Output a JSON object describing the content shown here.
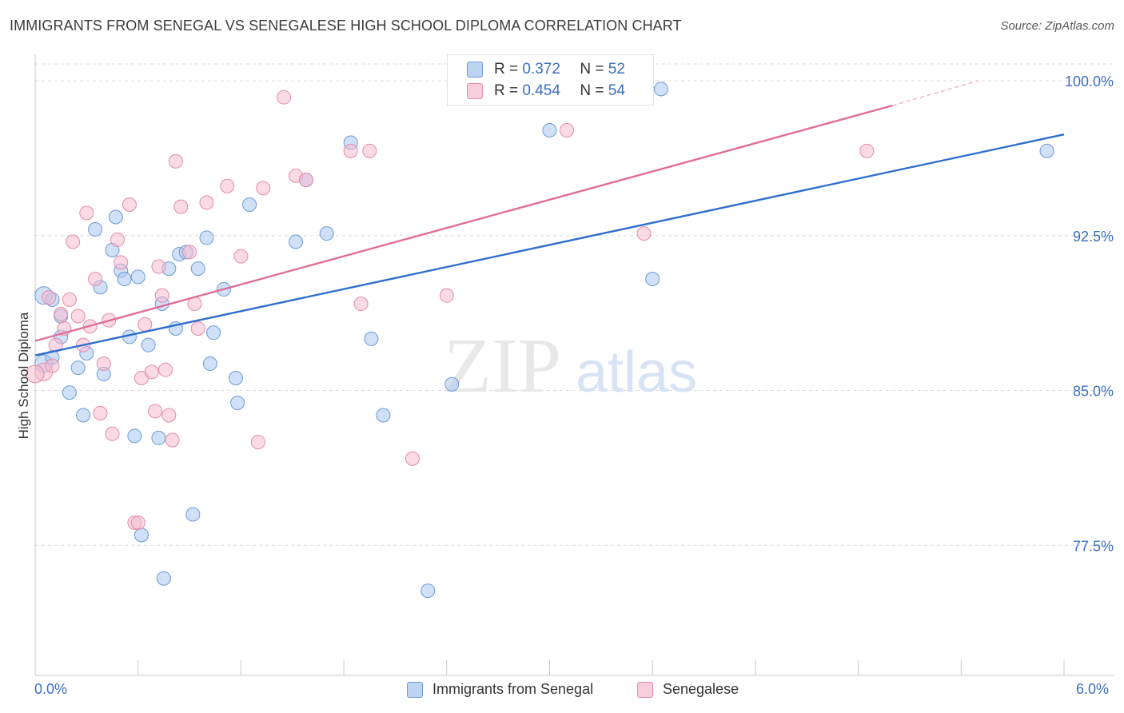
{
  "title": "IMMIGRANTS FROM SENEGAL VS SENEGALESE HIGH SCHOOL DIPLOMA CORRELATION CHART",
  "source": "Source: ZipAtlas.com",
  "watermark": {
    "zip": "ZIP",
    "atlas": "atlas"
  },
  "legend_top": {
    "rows": [
      {
        "r_label": "R =",
        "r_value": "0.372",
        "n_label": "N =",
        "n_value": "52"
      },
      {
        "r_label": "R =",
        "r_value": "0.454",
        "n_label": "N =",
        "n_value": "54"
      }
    ]
  },
  "colors": {
    "blue_fill": "#a9c6ee",
    "blue_stroke": "#6b9ad8",
    "blue_line": "#2f6fcc",
    "pink_fill": "#f5bcd0",
    "pink_stroke": "#e58aaa",
    "pink_line": "#e06d95",
    "axis_label": "#3a6fc4",
    "grid": "#dcdcdc"
  },
  "chart_data": {
    "type": "scatter",
    "title": "IMMIGRANTS FROM SENEGAL VS SENEGALESE HIGH SCHOOL DIPLOMA CORRELATION CHART",
    "xlabel": "",
    "ylabel": "High School Diploma",
    "xlim": [
      0.0,
      6.0
    ],
    "ylim": [
      71.2,
      101.2
    ],
    "x_tick_labels": [
      "0.0%",
      "6.0%"
    ],
    "y_ticks": [
      77.5,
      85.0,
      92.5,
      100.0
    ],
    "y_tick_labels": [
      "77.5%",
      "85.0%",
      "92.5%",
      "100.0%"
    ],
    "grid": true,
    "legend_position": "bottom",
    "series": [
      {
        "name": "Immigrants from Senegal",
        "color": "#a9c6ee",
        "trend": {
          "x": [
            0.0,
            6.0
          ],
          "y": [
            86.7,
            97.4
          ]
        },
        "points": [
          [
            0.05,
            86.3
          ],
          [
            0.05,
            89.6
          ],
          [
            0.1,
            89.4
          ],
          [
            0.1,
            86.6
          ],
          [
            0.15,
            88.6
          ],
          [
            0.15,
            87.6
          ],
          [
            0.2,
            84.9
          ],
          [
            0.25,
            86.1
          ],
          [
            0.28,
            83.8
          ],
          [
            0.3,
            86.8
          ],
          [
            0.35,
            92.8
          ],
          [
            0.38,
            90.0
          ],
          [
            0.4,
            85.8
          ],
          [
            0.45,
            91.8
          ],
          [
            0.47,
            93.4
          ],
          [
            0.5,
            90.8
          ],
          [
            0.52,
            90.4
          ],
          [
            0.55,
            87.6
          ],
          [
            0.58,
            82.8
          ],
          [
            0.6,
            90.5
          ],
          [
            0.62,
            78.0
          ],
          [
            0.66,
            87.2
          ],
          [
            0.72,
            82.7
          ],
          [
            0.74,
            89.2
          ],
          [
            0.75,
            75.9
          ],
          [
            0.78,
            90.9
          ],
          [
            0.82,
            88.0
          ],
          [
            0.84,
            91.6
          ],
          [
            0.88,
            91.7
          ],
          [
            0.92,
            79.0
          ],
          [
            0.95,
            90.9
          ],
          [
            1.0,
            92.4
          ],
          [
            1.02,
            86.3
          ],
          [
            1.04,
            87.8
          ],
          [
            1.1,
            89.9
          ],
          [
            1.17,
            85.6
          ],
          [
            1.18,
            84.4
          ],
          [
            1.25,
            94.0
          ],
          [
            1.52,
            92.2
          ],
          [
            1.58,
            95.2
          ],
          [
            1.7,
            92.6
          ],
          [
            1.84,
            97.0
          ],
          [
            1.96,
            87.5
          ],
          [
            2.03,
            83.8
          ],
          [
            2.29,
            75.3
          ],
          [
            2.43,
            85.3
          ],
          [
            2.75,
            100.0
          ],
          [
            3.0,
            97.6
          ],
          [
            3.6,
            90.4
          ],
          [
            5.9,
            96.6
          ],
          [
            3.65,
            99.6
          ],
          [
            3.2,
            100.1
          ]
        ]
      },
      {
        "name": "Senegalese",
        "color": "#f5bcd0",
        "trend": {
          "x": [
            0.0,
            5.0
          ],
          "y": [
            87.4,
            98.8
          ]
        },
        "dashed_extension": {
          "x": [
            5.0,
            5.5
          ],
          "y": [
            98.8,
            100.0
          ]
        },
        "points": [
          [
            0.05,
            85.9
          ],
          [
            0.08,
            89.5
          ],
          [
            0.1,
            86.2
          ],
          [
            0.12,
            87.2
          ],
          [
            0.15,
            88.7
          ],
          [
            0.17,
            88.0
          ],
          [
            0.2,
            89.4
          ],
          [
            0.22,
            92.2
          ],
          [
            0.25,
            88.6
          ],
          [
            0.28,
            87.2
          ],
          [
            0.3,
            93.6
          ],
          [
            0.32,
            88.1
          ],
          [
            0.35,
            90.4
          ],
          [
            0.38,
            83.9
          ],
          [
            0.4,
            86.3
          ],
          [
            0.43,
            88.4
          ],
          [
            0.45,
            82.9
          ],
          [
            0.48,
            92.3
          ],
          [
            0.5,
            91.2
          ],
          [
            0.55,
            94.0
          ],
          [
            0.58,
            78.6
          ],
          [
            0.6,
            78.6
          ],
          [
            0.62,
            85.6
          ],
          [
            0.64,
            88.2
          ],
          [
            0.68,
            85.9
          ],
          [
            0.7,
            84.0
          ],
          [
            0.72,
            91.0
          ],
          [
            0.74,
            89.6
          ],
          [
            0.76,
            86.0
          ],
          [
            0.78,
            83.8
          ],
          [
            0.8,
            82.6
          ],
          [
            0.82,
            96.1
          ],
          [
            0.85,
            93.9
          ],
          [
            0.9,
            91.7
          ],
          [
            0.93,
            89.2
          ],
          [
            0.95,
            88.0
          ],
          [
            1.0,
            94.1
          ],
          [
            1.12,
            94.9
          ],
          [
            1.2,
            91.5
          ],
          [
            1.3,
            82.5
          ],
          [
            1.33,
            94.8
          ],
          [
            1.45,
            99.2
          ],
          [
            1.52,
            95.4
          ],
          [
            1.58,
            95.2
          ],
          [
            1.84,
            96.6
          ],
          [
            1.9,
            89.2
          ],
          [
            1.95,
            96.6
          ],
          [
            2.2,
            81.7
          ],
          [
            2.4,
            89.6
          ],
          [
            2.75,
            100.0
          ],
          [
            3.1,
            97.6
          ],
          [
            3.55,
            92.6
          ],
          [
            4.85,
            96.6
          ],
          [
            0.0,
            85.8
          ]
        ]
      }
    ]
  },
  "legend_bottom": [
    {
      "label": "Immigrants from Senegal"
    },
    {
      "label": "Senegalese"
    }
  ]
}
